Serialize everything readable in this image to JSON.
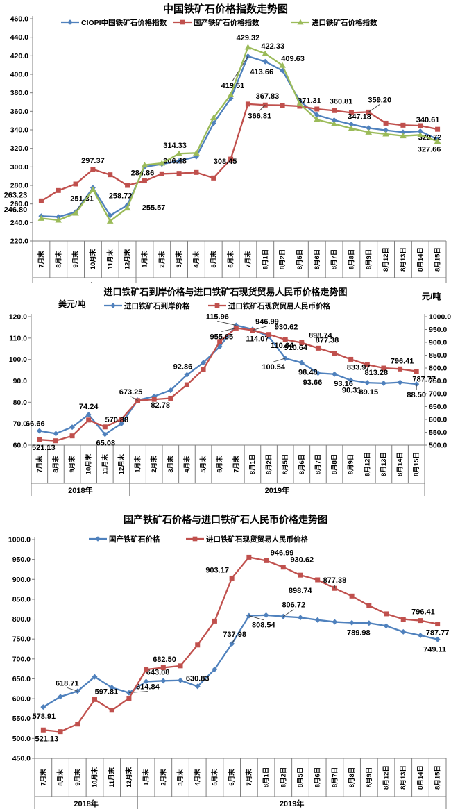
{
  "chart_data": [
    {
      "type": "line",
      "title": "中国铁矿石价格指数走势图",
      "categories": [
        "7月末",
        "8月末",
        "9月末",
        "10月末",
        "11月末",
        "12月末",
        "1月末",
        "2月末",
        "3月末",
        "4月末",
        "5月末",
        "6月末",
        "7月末",
        "8月1日",
        "8月2日",
        "8月5日",
        "8月6日",
        "8月7日",
        "8月8日",
        "8月9日",
        "8月12日",
        "8月13日",
        "8月14日",
        "8月15日"
      ],
      "year_groups": [
        {
          "label": "2018年",
          "count": 6
        },
        {
          "label": "2019年",
          "count": 18
        }
      ],
      "y_left": {
        "min": 220,
        "max": 460,
        "step": 20
      },
      "grid": false,
      "legend_position": "top",
      "series": [
        {
          "name": "CIOPI中国铁矿石价格指数",
          "color": "#4F81BD",
          "marker": "diamond",
          "axis": "left",
          "values": [
            246.8,
            246.0,
            251.31,
            277.5,
            247.5,
            258.72,
            300.0,
            303.0,
            306.48,
            311.0,
            347.0,
            374.0,
            419.51,
            413.66,
            404.0,
            371.31,
            356.0,
            350.5,
            346.0,
            342.0,
            339.5,
            337.5,
            338.5,
            329.72
          ],
          "labels": [
            {
              "i": 0,
              "t": "246.80",
              "dx": -37,
              "dy": -6
            },
            {
              "i": 2,
              "t": "251.31",
              "dx": 9,
              "dy": -16,
              "l": 1
            },
            {
              "i": 5,
              "t": "258.72",
              "dx": -10,
              "dy": -10
            },
            {
              "i": 8,
              "t": "306.48",
              "dx": -6,
              "dy": 4
            },
            {
              "i": 12,
              "t": "419.51",
              "dx": -22,
              "dy": 46,
              "l": 1
            },
            {
              "i": 13,
              "t": "413.66",
              "dx": -5,
              "dy": 18
            },
            {
              "i": 15,
              "t": "371.31",
              "dx": 14,
              "dy": 3
            },
            {
              "i": 23,
              "t": "329.72",
              "dx": -11,
              "dy": 1
            }
          ]
        },
        {
          "name": "国产铁矿石价格指数",
          "color": "#C0504D",
          "marker": "square",
          "axis": "left",
          "values": [
            263.23,
            274.5,
            281.5,
            297.37,
            291.5,
            280.0,
            284.86,
            292.5,
            293.0,
            294.0,
            288.0,
            308.45,
            367.83,
            366.81,
            366.5,
            365.5,
            362.5,
            360.81,
            358.5,
            359.2,
            347.18,
            345.0,
            344.5,
            340.61
          ],
          "labels": [
            {
              "i": 0,
              "t": "263.23",
              "dx": -37,
              "dy": -5
            },
            {
              "i": 3,
              "t": "297.37",
              "dx": 0,
              "dy": -9
            },
            {
              "i": 6,
              "t": "284.86",
              "dx": -3,
              "dy": -8
            },
            {
              "i": 11,
              "t": "308.45",
              "dx": -8,
              "dy": 7
            },
            {
              "i": 12,
              "t": "367.83",
              "dx": 28,
              "dy": -8
            },
            {
              "i": 13,
              "t": "366.81",
              "dx": -8,
              "dy": 19,
              "l": 1
            },
            {
              "i": 17,
              "t": "360.81",
              "dx": 10,
              "dy": -10
            },
            {
              "i": 19,
              "t": "359.20",
              "dx": 16,
              "dy": -14,
              "l": 1
            },
            {
              "i": 20,
              "t": "347.18",
              "dx": -38,
              "dy": -6
            },
            {
              "i": 23,
              "t": "340.61",
              "dx": -14,
              "dy": -10
            }
          ]
        },
        {
          "name": "进口铁矿石价格指数",
          "color": "#9BBB59",
          "marker": "triangle",
          "axis": "left",
          "values": [
            244.5,
            242.5,
            250.0,
            275.5,
            241.5,
            255.57,
            302.0,
            304.0,
            314.33,
            315.0,
            353.0,
            378.0,
            429.32,
            422.33,
            409.63,
            368.0,
            351.0,
            346.5,
            341.5,
            337.5,
            335.5,
            333.5,
            334.5,
            327.66
          ],
          "labels": [
            {
              "i": 5,
              "t": "255.57",
              "dx": 38,
              "dy": 3
            },
            {
              "i": 8,
              "t": "314.33",
              "dx": -6,
              "dy": -8
            },
            {
              "i": 12,
              "t": "429.32",
              "dx": 0,
              "dy": -10
            },
            {
              "i": 13,
              "t": "422.33",
              "dx": 11,
              "dy": -7
            },
            {
              "i": 14,
              "t": "409.63",
              "dx": 15,
              "dy": -6
            },
            {
              "i": 23,
              "t": "327.66",
              "dx": -12,
              "dy": 15
            }
          ]
        }
      ]
    },
    {
      "type": "line",
      "title": "进口铁矿石到岸价格与进口铁矿石现货贸易人民币价格走势图",
      "ylabel_left": "美元/吨",
      "ylabel_right": "元/吨",
      "categories": [
        "7月末",
        "8月末",
        "9月末",
        "10月末",
        "11月末",
        "12月末",
        "1月末",
        "2月末",
        "3月末",
        "4月末",
        "5月末",
        "6月末",
        "7月末",
        "8月1日",
        "8月2日",
        "8月5日",
        "8月6日",
        "8月7日",
        "8月8日",
        "8月9日",
        "8月12日",
        "8月13日",
        "8月14日",
        "8月15日"
      ],
      "year_groups": [
        {
          "label": "2018年",
          "count": 6
        },
        {
          "label": "2019年",
          "count": 18
        }
      ],
      "y_left": {
        "min": 60,
        "max": 120,
        "step": 10
      },
      "y_right": {
        "min": 500,
        "max": 1000,
        "step": 50
      },
      "grid": false,
      "legend_position": "top",
      "series": [
        {
          "name": "进口铁矿石到岸价格",
          "color": "#4F81BD",
          "marker": "diamond",
          "axis": "left",
          "values": [
            66.66,
            65.4,
            68.4,
            74.24,
            65.08,
            70.0,
            81.0,
            82.78,
            85.6,
            92.86,
            98.5,
            106.0,
            115.96,
            114.07,
            110.64,
            100.54,
            98.48,
            93.66,
            93.16,
            90.31,
            89.15,
            88.9,
            89.3,
            88.5
          ],
          "labels": [
            {
              "i": 0,
              "t": "66.66",
              "dx": -6,
              "dy": -7
            },
            {
              "i": 3,
              "t": "74.24",
              "dx": 0,
              "dy": -8
            },
            {
              "i": 4,
              "t": "65.08",
              "dx": 1,
              "dy": 16
            },
            {
              "i": 7,
              "t": "82.78",
              "dx": 9,
              "dy": 16
            },
            {
              "i": 9,
              "t": "92.86",
              "dx": -6,
              "dy": -8
            },
            {
              "i": 12,
              "t": "115.96",
              "dx": -27,
              "dy": -9,
              "l": 1
            },
            {
              "i": 13,
              "t": "114.07",
              "dx": 7,
              "dy": 17
            },
            {
              "i": 14,
              "t": "110.64",
              "dx": 19,
              "dy": 16
            },
            {
              "i": 15,
              "t": "100.54",
              "dx": -17,
              "dy": 16,
              "l": 1
            },
            {
              "i": 16,
              "t": "98.48",
              "dx": 9,
              "dy": 17
            },
            {
              "i": 17,
              "t": "93.66",
              "dx": -8,
              "dy": 17
            },
            {
              "i": 18,
              "t": "93.16",
              "dx": 13,
              "dy": 17
            },
            {
              "i": 19,
              "t": "90.31",
              "dx": 1,
              "dy": 18
            },
            {
              "i": 20,
              "t": "89.15",
              "dx": 2,
              "dy": 17
            },
            {
              "i": 23,
              "t": "88.50",
              "dx": 0,
              "dy": 19,
              "l": 1
            }
          ]
        },
        {
          "name": "进口铁矿石现货贸易人民币价格",
          "color": "#C0504D",
          "marker": "square",
          "axis": "right",
          "values": [
            521.13,
            517.0,
            536.0,
            597.81,
            570.88,
            601.0,
            673.25,
            678.0,
            682.5,
            735.0,
            795.0,
            903.17,
            955.65,
            946.99,
            930.62,
            910.64,
            898.74,
            877.38,
            858.0,
            833.97,
            813.28,
            800.0,
            796.41,
            787.77
          ],
          "labels": [
            {
              "i": 0,
              "t": "521.13",
              "dx": 6,
              "dy": 15
            },
            {
              "i": 4,
              "t": "570.88",
              "dx": 17,
              "dy": -7
            },
            {
              "i": 6,
              "t": "673.25",
              "dx": -10,
              "dy": -9,
              "l": 1
            },
            {
              "i": 12,
              "t": "955.65",
              "dx": -21,
              "dy": 16,
              "l": 1
            },
            {
              "i": 13,
              "t": "946.99",
              "dx": 21,
              "dy": -9,
              "l": 1
            },
            {
              "i": 14,
              "t": "930.62",
              "dx": 25,
              "dy": -7
            },
            {
              "i": 15,
              "t": "910.64",
              "dx": 15,
              "dy": 15
            },
            {
              "i": 16,
              "t": "898.74",
              "dx": 27,
              "dy": -7
            },
            {
              "i": 17,
              "t": "877.38",
              "dx": 13,
              "dy": -8
            },
            {
              "i": 19,
              "t": "833.97",
              "dx": 11,
              "dy": 15
            },
            {
              "i": 20,
              "t": "813.28",
              "dx": 13,
              "dy": 15
            },
            {
              "i": 22,
              "t": "796.41",
              "dx": 3,
              "dy": -8
            },
            {
              "i": 23,
              "t": "787.77",
              "dx": 11,
              "dy": 15
            }
          ]
        }
      ]
    },
    {
      "type": "line",
      "title": "国产铁矿石价格与进口铁矿石人民币价格走势图",
      "categories": [
        "7月末",
        "8月末",
        "9月末",
        "10月末",
        "11月末",
        "12月末",
        "1月末",
        "2月末",
        "3月末",
        "4月末",
        "5月末",
        "6月末",
        "7月末",
        "8月1日",
        "8月2日",
        "8月5日",
        "8月6日",
        "8月7日",
        "8月8日",
        "8月9日",
        "8月12日",
        "8月13日",
        "8月14日",
        "8月15日"
      ],
      "year_groups": [
        {
          "label": "2018年",
          "count": 6
        },
        {
          "label": "2019年",
          "count": 18
        }
      ],
      "y_left": {
        "min": 450,
        "max": 1000,
        "step": 50
      },
      "grid": false,
      "legend_position": "top",
      "series": [
        {
          "name": "国产铁矿石价格",
          "color": "#4F81BD",
          "marker": "diamond",
          "axis": "left",
          "values": [
            578.91,
            605.0,
            618.71,
            655.0,
            628.0,
            614.84,
            643.08,
            645.0,
            646.0,
            630.83,
            674.0,
            737.98,
            808.54,
            810.0,
            806.72,
            804.0,
            798.0,
            793.0,
            791.0,
            789.98,
            783.0,
            768.0,
            759.0,
            749.11
          ],
          "labels": [
            {
              "i": 0,
              "t": "578.91",
              "dx": 1,
              "dy": 17
            },
            {
              "i": 2,
              "t": "618.71",
              "dx": -15,
              "dy": -8,
              "l": 1
            },
            {
              "i": 5,
              "t": "614.84",
              "dx": 27,
              "dy": -5,
              "l": 1
            },
            {
              "i": 6,
              "t": "643.08",
              "dx": 17,
              "dy": -10
            },
            {
              "i": 9,
              "t": "630.83",
              "dx": 0,
              "dy": -8
            },
            {
              "i": 11,
              "t": "737.98",
              "dx": 4,
              "dy": -10,
              "l": 1
            },
            {
              "i": 12,
              "t": "808.54",
              "dx": 21,
              "dy": 17,
              "l": 1
            },
            {
              "i": 14,
              "t": "806.72",
              "dx": 15,
              "dy": -13,
              "l": 1
            },
            {
              "i": 19,
              "t": "789.98",
              "dx": -15,
              "dy": 17
            },
            {
              "i": 23,
              "t": "749.11",
              "dx": -4,
              "dy": 18
            }
          ]
        },
        {
          "name": "进口铁矿石现货贸易人民币价格",
          "color": "#C0504D",
          "marker": "square",
          "axis": "left",
          "values": [
            521.13,
            517.0,
            536.0,
            597.81,
            570.88,
            601.0,
            673.25,
            678.0,
            682.5,
            735.0,
            795.0,
            903.17,
            955.65,
            946.99,
            930.62,
            910.64,
            898.74,
            877.38,
            858.0,
            833.97,
            813.28,
            800.0,
            796.41,
            787.77
          ],
          "labels": [
            {
              "i": 0,
              "t": "521.13",
              "dx": 5,
              "dy": 16
            },
            {
              "i": 3,
              "t": "597.81",
              "dx": 17,
              "dy": -8
            },
            {
              "i": 8,
              "t": "682.50",
              "dx": -23,
              "dy": -6
            },
            {
              "i": 11,
              "t": "903.17",
              "dx": -21,
              "dy": -8
            },
            {
              "i": 13,
              "t": "946.99",
              "dx": 23,
              "dy": -8
            },
            {
              "i": 14,
              "t": "930.62",
              "dx": 27,
              "dy": -7
            },
            {
              "i": 16,
              "t": "898.74",
              "dx": -25,
              "dy": 19
            },
            {
              "i": 17,
              "t": "877.38",
              "dx": 0,
              "dy": -8,
              "l": 1
            },
            {
              "i": 22,
              "t": "796.41",
              "dx": 4,
              "dy": -9
            },
            {
              "i": 23,
              "t": "787.77",
              "dx": 0,
              "dy": 16
            }
          ]
        }
      ]
    }
  ]
}
